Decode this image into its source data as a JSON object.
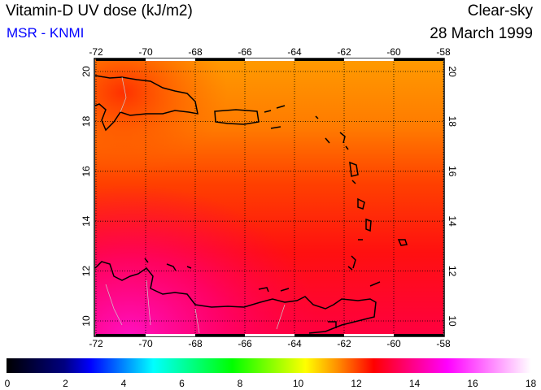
{
  "header": {
    "title": "Vitamin-D UV dose (kJ/m2)",
    "source": "MSR - KNMI",
    "condition": "Clear-sky",
    "date": "28 March 1999"
  },
  "map": {
    "lon_ticks": [
      "-72",
      "-70",
      "-68",
      "-66",
      "-64",
      "-62",
      "-60",
      "-58"
    ],
    "lat_ticks": [
      "20",
      "18",
      "16",
      "14",
      "12",
      "10"
    ],
    "lon_values": [
      -72,
      -70,
      -68,
      -66,
      -64,
      -62,
      -60,
      -58
    ],
    "lat_values": [
      20,
      18,
      16,
      14,
      12,
      10
    ]
  },
  "colorbar": {
    "labels": [
      "0",
      "2",
      "4",
      "6",
      "8",
      "10",
      "12",
      "14",
      "16",
      "18"
    ],
    "stops": [
      "#000000",
      "#000080",
      "#0000ff",
      "#00ffff",
      "#00ff00",
      "#ffff00",
      "#ff8000",
      "#ff0000",
      "#ff00ff",
      "#ffffff"
    ]
  },
  "colors": {
    "source": "#0000ff"
  }
}
